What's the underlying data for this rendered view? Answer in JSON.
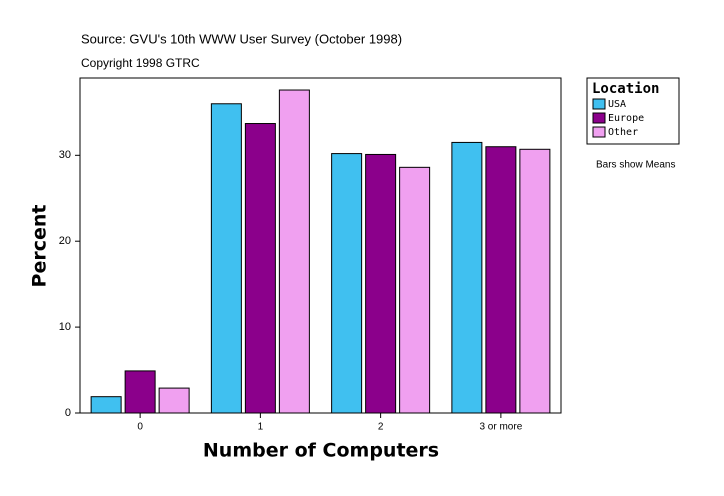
{
  "chart_data": {
    "type": "bar",
    "title": "Source: GVU's 10th WWW User Survey (October 1998)",
    "subtitle": "Copyright 1998 GTRC",
    "x_label": "Number of Computers",
    "y_label": "Percent",
    "legend_title": "Location",
    "note": "Bars show Means",
    "categories": [
      "0",
      "1",
      "2",
      "3 or more"
    ],
    "series": [
      {
        "name": "USA",
        "color": "#40c0f0",
        "values": [
          1.9,
          36.0,
          30.2,
          31.5
        ]
      },
      {
        "name": "Europe",
        "color": "#8b008b",
        "values": [
          4.9,
          33.7,
          30.1,
          31.0
        ]
      },
      {
        "name": "Other",
        "color": "#f0a0f0",
        "values": [
          2.9,
          37.6,
          28.6,
          30.7
        ]
      }
    ],
    "ylim": [
      0,
      39
    ],
    "yticks": [
      0,
      10,
      20,
      30
    ],
    "legend_position": "right"
  }
}
